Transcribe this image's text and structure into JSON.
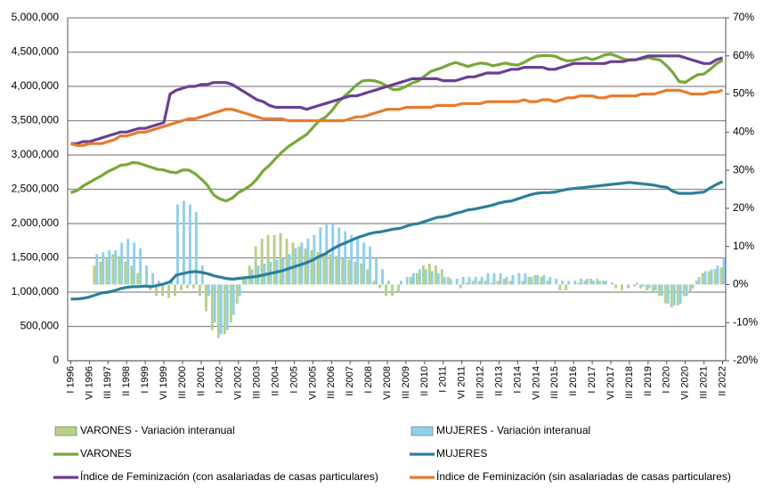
{
  "chart_data": {
    "type": "combo",
    "categories": [
      "I 1996",
      null,
      null,
      "VI 1996",
      null,
      null,
      "III 1997",
      null,
      null,
      "II 1998",
      null,
      null,
      "I 1999",
      null,
      null,
      "VI 1999",
      null,
      null,
      "III 2000",
      null,
      null,
      "II 2001",
      null,
      null,
      "I 2002",
      null,
      null,
      "VI 2002",
      null,
      null,
      "III 2003",
      null,
      null,
      "II 2004",
      null,
      null,
      "I 2005",
      null,
      null,
      "VI 2005",
      null,
      null,
      "III 2006",
      null,
      null,
      "II 2007",
      null,
      null,
      "I 2008",
      null,
      null,
      "VI 2008",
      null,
      null,
      "III 2009",
      null,
      null,
      "II 2010",
      null,
      null,
      "I 2011",
      null,
      null,
      "VI 2011",
      null,
      null,
      "III 2012",
      null,
      null,
      "II 2013",
      null,
      null,
      "I 2014",
      null,
      null,
      "VI 2014",
      null,
      null,
      "III 2015",
      null,
      null,
      "II 2016",
      null,
      null,
      "I 2017",
      null,
      null,
      "VI 2017",
      null,
      null,
      "III 2018",
      null,
      null,
      "II 2019",
      null,
      null,
      "I 2020",
      null,
      null,
      "VI 2020",
      null,
      null,
      "III 2021",
      null,
      null,
      "II 2022"
    ],
    "ylim": [
      0,
      5000000
    ],
    "yticks": [
      0,
      {
        "value": 500000,
        "label": "500,000"
      },
      {
        "value": 1000000,
        "label": "1,000,000"
      },
      {
        "value": 1500000,
        "label": "1,500,000"
      },
      {
        "value": 2000000,
        "label": "2,000,000"
      },
      {
        "value": 2500000,
        "label": "2,500,000"
      },
      {
        "value": 3000000,
        "label": "3,000,000"
      },
      {
        "value": 3500000,
        "label": "3,500,000"
      },
      {
        "value": 4000000,
        "label": "4,000,000"
      },
      {
        "value": 4500000,
        "label": "4,500,000"
      },
      {
        "value": 5000000,
        "label": "5,000,000"
      }
    ],
    "y2lim": [
      -20,
      70
    ],
    "y2ticks": [
      {
        "value": -20,
        "label": "-20%"
      },
      {
        "value": -10,
        "label": "-10%"
      },
      {
        "value": 0,
        "label": "0%"
      },
      {
        "value": 10,
        "label": "10%"
      },
      {
        "value": 20,
        "label": "20%"
      },
      {
        "value": 30,
        "label": "30%"
      },
      {
        "value": 40,
        "label": "40%"
      },
      {
        "value": 50,
        "label": "50%"
      },
      {
        "value": 60,
        "label": "60%"
      },
      {
        "value": 70,
        "label": "70%"
      }
    ],
    "grid": true,
    "series": [
      {
        "name": "VARONES - Variación interanual",
        "type": "bar",
        "axis": "y2",
        "color": "#b7d08a",
        "values": [
          null,
          null,
          null,
          null,
          5,
          6,
          7,
          8,
          7.5,
          6,
          5,
          3,
          0,
          -1.5,
          -3,
          -3,
          -3.5,
          -3,
          -1.5,
          -1,
          -1,
          -3,
          -7,
          -12,
          -14,
          -13,
          -10,
          -5,
          2,
          5,
          10,
          12,
          13,
          13,
          13.5,
          12,
          11,
          10,
          9.5,
          9,
          8.5,
          8,
          8,
          7.5,
          7,
          6.5,
          6,
          5.5,
          4,
          1,
          -1,
          -3,
          -3,
          -2,
          0,
          2,
          3,
          5,
          5.5,
          5,
          4,
          2,
          0,
          -1,
          0.5,
          1,
          1,
          1,
          0.5,
          1,
          1.5,
          1,
          0,
          1,
          2,
          2.5,
          2,
          1,
          0,
          -1.5,
          -1.5,
          0,
          0.5,
          1,
          1.5,
          1.5,
          1,
          0,
          -1,
          -1.5,
          -1,
          -0.5,
          -1,
          -1.5,
          -2,
          -3,
          -5,
          -6,
          -5.5,
          -3,
          -2,
          1,
          3,
          3.5,
          4,
          4.5
        ]
      },
      {
        "name": "MUJERES - Variación interanual",
        "type": "bar",
        "axis": "y2",
        "color": "#8fd0ea",
        "values": [
          null,
          null,
          null,
          null,
          8,
          8.5,
          9,
          9,
          11,
          12,
          11,
          9.5,
          5,
          3,
          1,
          0,
          1,
          21,
          22,
          21,
          19,
          5,
          -3,
          -10,
          -13,
          -12,
          -8,
          -3,
          2,
          4,
          5,
          5.5,
          6,
          6.5,
          7,
          8,
          9.5,
          11,
          12,
          13,
          15,
          16,
          16,
          15,
          14,
          13,
          12,
          11,
          10,
          7,
          4,
          1,
          0,
          1,
          2,
          3,
          4,
          4,
          3.5,
          3,
          2,
          1.5,
          1.5,
          2,
          2,
          2,
          2,
          3,
          3,
          3,
          2,
          2.5,
          3,
          3,
          2,
          2.5,
          2.5,
          2,
          1.5,
          1,
          1,
          1,
          1.5,
          1.5,
          1,
          1,
          1,
          0.5,
          0,
          0,
          0,
          0.5,
          -0.5,
          -1,
          -1.5,
          -3,
          -5,
          -5.5,
          -5,
          -3,
          -1,
          2,
          3.5,
          4,
          5,
          7
        ]
      },
      {
        "name": "VARONES",
        "type": "line",
        "color": "#77a83a",
        "values": [
          2450000,
          2480000,
          2550000,
          2600000,
          2650000,
          2700000,
          2760000,
          2800000,
          2850000,
          2860000,
          2890000,
          2880000,
          2850000,
          2820000,
          2790000,
          2780000,
          2750000,
          2740000,
          2780000,
          2780000,
          2730000,
          2650000,
          2560000,
          2420000,
          2360000,
          2330000,
          2370000,
          2450000,
          2500000,
          2560000,
          2650000,
          2770000,
          2850000,
          2950000,
          3040000,
          3120000,
          3180000,
          3240000,
          3300000,
          3400000,
          3500000,
          3550000,
          3640000,
          3760000,
          3850000,
          3930000,
          4020000,
          4080000,
          4090000,
          4080000,
          4050000,
          4000000,
          3950000,
          3960000,
          4000000,
          4050000,
          4080000,
          4150000,
          4220000,
          4250000,
          4280000,
          4320000,
          4350000,
          4320000,
          4290000,
          4320000,
          4340000,
          4330000,
          4300000,
          4320000,
          4340000,
          4320000,
          4310000,
          4350000,
          4400000,
          4440000,
          4450000,
          4450000,
          4440000,
          4400000,
          4370000,
          4380000,
          4400000,
          4420000,
          4390000,
          4420000,
          4460000,
          4470000,
          4440000,
          4400000,
          4380000,
          4390000,
          4400000,
          4420000,
          4400000,
          4380000,
          4300000,
          4200000,
          4070000,
          4060000,
          4120000,
          4170000,
          4180000,
          4250000,
          4330000,
          4380000
        ]
      },
      {
        "name": "MUJERES",
        "type": "line",
        "color": "#2c7f9b",
        "values": [
          900000,
          900000,
          910000,
          930000,
          960000,
          990000,
          1000000,
          1020000,
          1050000,
          1070000,
          1080000,
          1080000,
          1090000,
          1080000,
          1100000,
          1120000,
          1150000,
          1250000,
          1270000,
          1290000,
          1300000,
          1290000,
          1270000,
          1240000,
          1220000,
          1200000,
          1190000,
          1200000,
          1210000,
          1220000,
          1230000,
          1250000,
          1270000,
          1290000,
          1310000,
          1340000,
          1370000,
          1400000,
          1430000,
          1470000,
          1520000,
          1560000,
          1620000,
          1670000,
          1710000,
          1750000,
          1790000,
          1820000,
          1850000,
          1870000,
          1880000,
          1900000,
          1920000,
          1930000,
          1960000,
          1990000,
          2000000,
          2030000,
          2060000,
          2090000,
          2100000,
          2120000,
          2150000,
          2170000,
          2200000,
          2210000,
          2230000,
          2250000,
          2270000,
          2300000,
          2320000,
          2330000,
          2360000,
          2390000,
          2420000,
          2440000,
          2450000,
          2450000,
          2460000,
          2480000,
          2500000,
          2510000,
          2520000,
          2530000,
          2540000,
          2550000,
          2560000,
          2570000,
          2580000,
          2590000,
          2600000,
          2590000,
          2580000,
          2570000,
          2560000,
          2540000,
          2530000,
          2470000,
          2440000,
          2440000,
          2440000,
          2450000,
          2460000,
          2520000,
          2570000,
          2610000
        ]
      },
      {
        "name": "Índice de Feminización (con asalariadas de casas particulares)",
        "type": "line",
        "axis": "y2",
        "color": "#6a3f91",
        "values": [
          37,
          37,
          37.5,
          37.5,
          38,
          38.5,
          39,
          39.5,
          40,
          40,
          40.5,
          41,
          41,
          41.5,
          42,
          42.5,
          50,
          51,
          51.5,
          52,
          52,
          52.5,
          52.5,
          53,
          53,
          53,
          52.5,
          51.5,
          50.5,
          49.5,
          48.5,
          48,
          47,
          46.5,
          46.5,
          46.5,
          46.5,
          46.5,
          46,
          46.5,
          47,
          47.5,
          48,
          48.5,
          49,
          49.5,
          49.5,
          50,
          50.5,
          51,
          51.5,
          52,
          52.5,
          53,
          53.5,
          54,
          54,
          54,
          54,
          54,
          53.5,
          53.5,
          53.5,
          54,
          54.5,
          54.5,
          55,
          55.5,
          55.5,
          55.5,
          56,
          56.5,
          56.5,
          57,
          57,
          57,
          57,
          56.5,
          56.5,
          57,
          57.5,
          58,
          58,
          58,
          58,
          58,
          58,
          58.5,
          58.5,
          58.5,
          59,
          59,
          59.5,
          60,
          60,
          60,
          60,
          60,
          60,
          59.5,
          59,
          58.5,
          58,
          58,
          59,
          59.5
        ]
      },
      {
        "name": "Índice de Feminización (sin asalariadas de casas particulares)",
        "type": "line",
        "axis": "y2",
        "color": "#e87b2c",
        "values": [
          37,
          36.5,
          36.5,
          37,
          37,
          37,
          37.5,
          38,
          39,
          39,
          39.5,
          40,
          40,
          40.5,
          41,
          41.5,
          42,
          42.5,
          43,
          43.5,
          43.5,
          44,
          44.5,
          45,
          45.5,
          46,
          46,
          45.5,
          45,
          44.5,
          44,
          43.5,
          43.5,
          43.5,
          43.5,
          43,
          43,
          43,
          43,
          43,
          43,
          43,
          43,
          43,
          43,
          43.5,
          44,
          44,
          44.5,
          45,
          45.5,
          46,
          46,
          46,
          46.5,
          46.5,
          46.5,
          46.5,
          46.5,
          47,
          47,
          47,
          47,
          47.5,
          47.5,
          47.5,
          47.5,
          48,
          48,
          48,
          48,
          48,
          48,
          48.5,
          48,
          48,
          48.5,
          48.5,
          48,
          48.5,
          49,
          49,
          49.5,
          49.5,
          49.5,
          49,
          49,
          49.5,
          49.5,
          49.5,
          49.5,
          49.5,
          50,
          50,
          50,
          50.5,
          51,
          51,
          51,
          50.5,
          50,
          50,
          50,
          50.5,
          50.5,
          51
        ]
      }
    ]
  }
}
